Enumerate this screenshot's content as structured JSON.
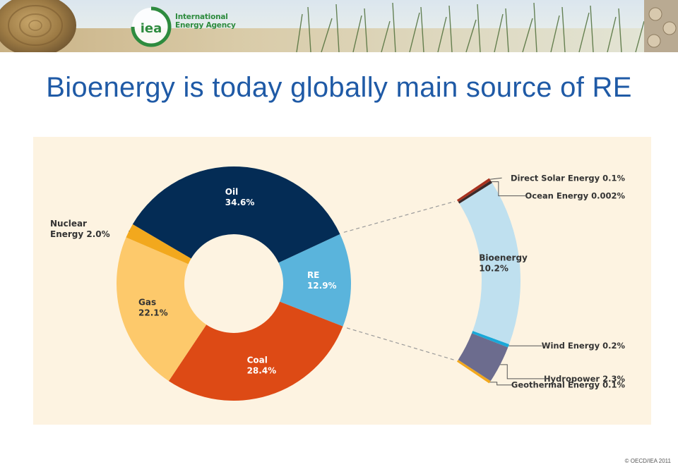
{
  "header": {
    "logo_monogram": "iea",
    "logo_line1": "International",
    "logo_line2": "Energy Agency"
  },
  "slide": {
    "title": "Bioenergy is today globally main source of RE",
    "copyright": "© OECD/IEA 2011"
  },
  "colors": {
    "title": "#1f5aa6",
    "panel_background": "#fdf3e1",
    "logo_green": "#2e8b3e"
  },
  "chart_data": [
    {
      "type": "pie",
      "variant": "donut",
      "title": "",
      "slices": [
        {
          "label": "RE",
          "value": 12.9,
          "color": "#5ab4dc",
          "text_color": "#ffffff",
          "display": "12.9%"
        },
        {
          "label": "Coal",
          "value": 28.4,
          "color": "#dd4a15",
          "text_color": "#ffffff",
          "display": "28.4%"
        },
        {
          "label": "Gas",
          "value": 22.1,
          "color": "#fdc96b",
          "text_color": "#333333",
          "display": "22.1%"
        },
        {
          "label": "Nuclear Energy",
          "value": 2.0,
          "color": "#f2a81d",
          "text_color": "#333333",
          "display": "2.0%",
          "label_outside": true
        },
        {
          "label": "Oil",
          "value": 34.6,
          "color": "#042c55",
          "text_color": "#ffffff",
          "display": "34.6%"
        }
      ]
    },
    {
      "type": "bar",
      "variant": "stacked-arc-breakdown",
      "parent": "RE",
      "segments": [
        {
          "label": "Geothermal Energy",
          "value": 0.1,
          "display": "0.1%",
          "color": "#f2a81d"
        },
        {
          "label": "Hydropower",
          "value": 2.3,
          "display": "2.3%",
          "color": "#6c6c8e"
        },
        {
          "label": "Wind Energy",
          "value": 0.2,
          "display": "0.2%",
          "color": "#1aa8d8"
        },
        {
          "label": "Bioenergy",
          "value": 10.2,
          "display": "10.2%",
          "color": "#bfe0ef"
        },
        {
          "label": "Ocean Energy",
          "value": 0.002,
          "display": "0.002%",
          "color": "#3a2a2a"
        },
        {
          "label": "Direct Solar Energy",
          "value": 0.1,
          "display": "0.1%",
          "color": "#a8321f"
        }
      ]
    }
  ]
}
